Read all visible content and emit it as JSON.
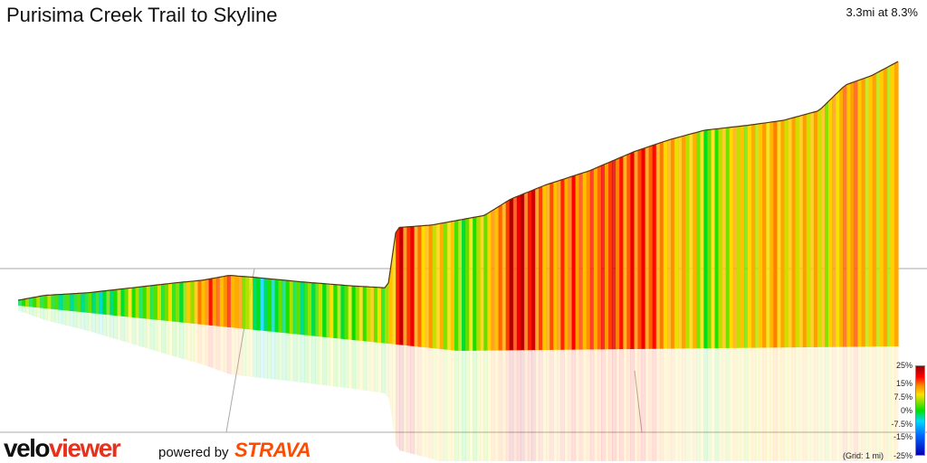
{
  "header": {
    "title": "Purisima Creek Trail to Skyline",
    "stats": "3.3mi at 8.3%"
  },
  "legend": {
    "ticks": [
      "25%",
      "15%",
      "7.5%",
      "0%",
      "-7.5%",
      "-15%",
      "-25%"
    ],
    "grid_note": "(Grid: 1 mi)",
    "colors": [
      "#9b0000",
      "#ff0000",
      "#ff8c00",
      "#ffe000",
      "#00e000",
      "#00d8ff",
      "#0066ff",
      "#0000b0"
    ]
  },
  "branding": {
    "logo_part1": "velo",
    "logo_part2": "viewer",
    "powered_by": "powered by",
    "partner": "STRAVA",
    "logo_color": "#e8301b",
    "partner_color": "#fc4c02"
  },
  "chart_data": {
    "type": "area",
    "description_units": "relative progress along climb (0-1) vs relative elevation (0-1), colored by gradient %",
    "profile": [
      {
        "x": 0.0,
        "y": 0.0,
        "grade": 2
      },
      {
        "x": 0.03,
        "y": 0.02,
        "grade": 1
      },
      {
        "x": 0.08,
        "y": 0.03,
        "grade": -2
      },
      {
        "x": 0.13,
        "y": 0.05,
        "grade": 3
      },
      {
        "x": 0.18,
        "y": 0.07,
        "grade": 2
      },
      {
        "x": 0.21,
        "y": 0.08,
        "grade": 14
      },
      {
        "x": 0.24,
        "y": 0.1,
        "grade": 16
      },
      {
        "x": 0.27,
        "y": 0.09,
        "grade": -3
      },
      {
        "x": 0.32,
        "y": 0.07,
        "grade": 1
      },
      {
        "x": 0.38,
        "y": 0.05,
        "grade": 4
      },
      {
        "x": 0.42,
        "y": 0.04,
        "grade": 6
      },
      {
        "x": 0.43,
        "y": 0.3,
        "grade": 20
      },
      {
        "x": 0.47,
        "y": 0.31,
        "grade": 10
      },
      {
        "x": 0.5,
        "y": 0.33,
        "grade": 3
      },
      {
        "x": 0.53,
        "y": 0.35,
        "grade": 6
      },
      {
        "x": 0.56,
        "y": 0.42,
        "grade": 22
      },
      {
        "x": 0.6,
        "y": 0.48,
        "grade": 14
      },
      {
        "x": 0.65,
        "y": 0.54,
        "grade": 16
      },
      {
        "x": 0.7,
        "y": 0.62,
        "grade": 18
      },
      {
        "x": 0.74,
        "y": 0.67,
        "grade": 12
      },
      {
        "x": 0.78,
        "y": 0.71,
        "grade": 4
      },
      {
        "x": 0.83,
        "y": 0.73,
        "grade": 9
      },
      {
        "x": 0.87,
        "y": 0.75,
        "grade": 11
      },
      {
        "x": 0.91,
        "y": 0.79,
        "grade": 8
      },
      {
        "x": 0.94,
        "y": 0.9,
        "grade": 13
      },
      {
        "x": 0.97,
        "y": 0.94,
        "grade": 10
      },
      {
        "x": 1.0,
        "y": 1.0,
        "grade": 7
      }
    ]
  }
}
